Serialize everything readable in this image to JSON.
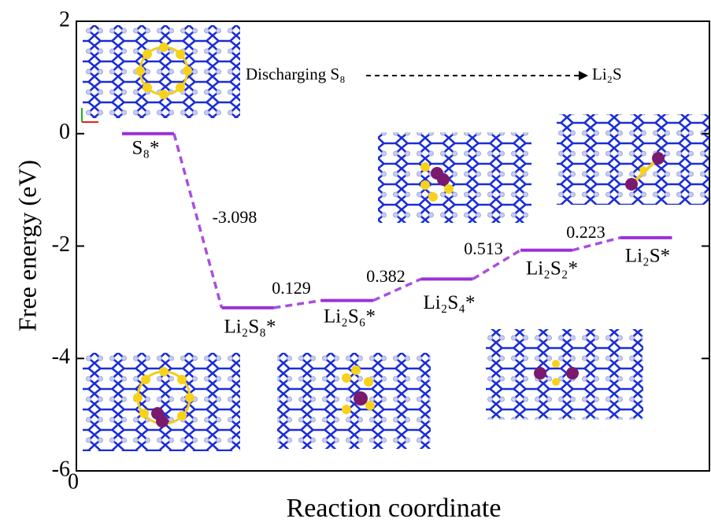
{
  "chart_data": {
    "type": "energy-levels",
    "ylabel": "Free energy (eV)",
    "xlabel": "Reaction coordinate",
    "categories": [
      "S₈*",
      "Li₂S₈*",
      "Li₂S₆*",
      "Li₂S₄*",
      "Li₂S₂*",
      "Li₂S*"
    ],
    "values": [
      0,
      -3.098,
      -2.969,
      -2.587,
      -2.074,
      -1.851
    ],
    "step_values": [
      -3.098,
      0.129,
      0.382,
      0.513,
      0.223
    ],
    "color": "#9b30d9",
    "ylim": [
      -6,
      2
    ],
    "yticks": [
      -6,
      -4,
      -2,
      0,
      2
    ],
    "xticks": [
      0
    ],
    "annotation": {
      "from": "Discharging S₈",
      "to": "Li₂S"
    }
  }
}
